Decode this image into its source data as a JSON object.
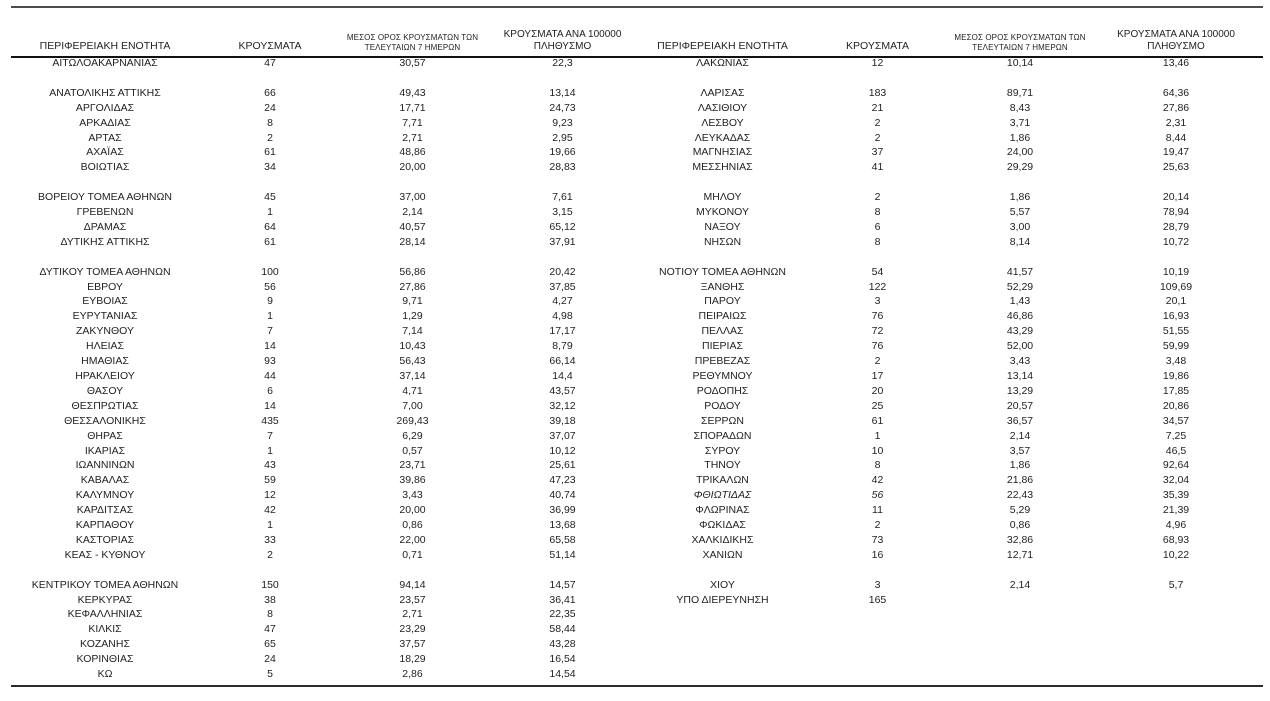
{
  "headers": {
    "region": "ΠΕΡΙΦΕΡΕΙΑΚΗ ΕΝΟΤΗΤΑ",
    "cases": "ΚΡΟΥΣΜΑΤΑ",
    "avg7_line1": "ΜΕΣΟΣ ΟΡΟΣ ΚΡΟΥΣΜΑΤΩΝ ΤΩΝ",
    "avg7_line2": "ΤΕΛΕΥΤΑΙΩΝ 7 ΗΜΕΡΩΝ",
    "per100k_line1": "ΚΡΟΥΣΜΑΤΑ ΑΝΑ 100000",
    "per100k_line2": "ΠΛΗΘΥΣΜΟ"
  },
  "colors": {
    "text": "#1f1f1f",
    "rule_top": "#4d4d4d",
    "rule_header": "#111111",
    "rule_bottom": "#2b2b2b",
    "background": "#ffffff"
  },
  "left_table": {
    "rows": [
      {
        "region": "ΑΙΤΩΛΟΑΚΑΡΝΑΝΙΑΣ",
        "cases": "47",
        "avg7": "30,57",
        "per100k": "22,3"
      },
      null,
      {
        "region": "ΑΝΑΤΟΛΙΚΗΣ ΑΤΤΙΚΗΣ",
        "cases": "66",
        "avg7": "49,43",
        "per100k": "13,14"
      },
      {
        "region": "ΑΡΓΟΛΙΔΑΣ",
        "cases": "24",
        "avg7": "17,71",
        "per100k": "24,73"
      },
      {
        "region": "ΑΡΚΑΔΙΑΣ",
        "cases": "8",
        "avg7": "7,71",
        "per100k": "9,23"
      },
      {
        "region": "ΑΡΤΑΣ",
        "cases": "2",
        "avg7": "2,71",
        "per100k": "2,95"
      },
      {
        "region": "ΑΧΑΪΑΣ",
        "cases": "61",
        "avg7": "48,86",
        "per100k": "19,66"
      },
      {
        "region": "ΒΟΙΩΤΙΑΣ",
        "cases": "34",
        "avg7": "20,00",
        "per100k": "28,83"
      },
      null,
      {
        "region": "ΒΟΡΕΙΟΥ ΤΟΜΕΑ ΑΘΗΝΩΝ",
        "cases": "45",
        "avg7": "37,00",
        "per100k": "7,61"
      },
      {
        "region": "ΓΡΕΒΕΝΩΝ",
        "cases": "1",
        "avg7": "2,14",
        "per100k": "3,15"
      },
      {
        "region": "ΔΡΑΜΑΣ",
        "cases": "64",
        "avg7": "40,57",
        "per100k": "65,12"
      },
      {
        "region": "ΔΥΤΙΚΗΣ ΑΤΤΙΚΗΣ",
        "cases": "61",
        "avg7": "28,14",
        "per100k": "37,91"
      },
      null,
      {
        "region": "ΔΥΤΙΚΟΥ ΤΟΜΕΑ ΑΘΗΝΩΝ",
        "cases": "100",
        "avg7": "56,86",
        "per100k": "20,42"
      },
      {
        "region": "ΕΒΡΟΥ",
        "cases": "56",
        "avg7": "27,86",
        "per100k": "37,85"
      },
      {
        "region": "ΕΥΒΟΙΑΣ",
        "cases": "9",
        "avg7": "9,71",
        "per100k": "4,27"
      },
      {
        "region": "ΕΥΡΥΤΑΝΙΑΣ",
        "cases": "1",
        "avg7": "1,29",
        "per100k": "4,98"
      },
      {
        "region": "ΖΑΚΥΝΘΟΥ",
        "cases": "7",
        "avg7": "7,14",
        "per100k": "17,17"
      },
      {
        "region": "ΗΛΕΙΑΣ",
        "cases": "14",
        "avg7": "10,43",
        "per100k": "8,79"
      },
      {
        "region": "ΗΜΑΘΙΑΣ",
        "cases": "93",
        "avg7": "56,43",
        "per100k": "66,14"
      },
      {
        "region": "ΗΡΑΚΛΕΙΟΥ",
        "cases": "44",
        "avg7": "37,14",
        "per100k": "14,4"
      },
      {
        "region": "ΘΑΣΟΥ",
        "cases": "6",
        "avg7": "4,71",
        "per100k": "43,57"
      },
      {
        "region": "ΘΕΣΠΡΩΤΙΑΣ",
        "cases": "14",
        "avg7": "7,00",
        "per100k": "32,12"
      },
      {
        "region": "ΘΕΣΣΑΛΟΝΙΚΗΣ",
        "cases": "435",
        "avg7": "269,43",
        "per100k": "39,18"
      },
      {
        "region": "ΘΗΡΑΣ",
        "cases": "7",
        "avg7": "6,29",
        "per100k": "37,07"
      },
      {
        "region": "ΙΚΑΡΙΑΣ",
        "cases": "1",
        "avg7": "0,57",
        "per100k": "10,12"
      },
      {
        "region": "ΙΩΑΝΝΙΝΩΝ",
        "cases": "43",
        "avg7": "23,71",
        "per100k": "25,61"
      },
      {
        "region": "ΚΑΒΑΛΑΣ",
        "cases": "59",
        "avg7": "39,86",
        "per100k": "47,23"
      },
      {
        "region": "ΚΑΛΥΜΝΟΥ",
        "cases": "12",
        "avg7": "3,43",
        "per100k": "40,74"
      },
      {
        "region": "ΚΑΡΔΙΤΣΑΣ",
        "cases": "42",
        "avg7": "20,00",
        "per100k": "36,99"
      },
      {
        "region": "ΚΑΡΠΑΘΟΥ",
        "cases": "1",
        "avg7": "0,86",
        "per100k": "13,68"
      },
      {
        "region": "ΚΑΣΤΟΡΙΑΣ",
        "cases": "33",
        "avg7": "22,00",
        "per100k": "65,58"
      },
      {
        "region": "ΚΕΑΣ - ΚΥΘΝΟΥ",
        "cases": "2",
        "avg7": "0,71",
        "per100k": "51,14"
      },
      null,
      {
        "region": "ΚΕΝΤΡΙΚΟΥ ΤΟΜΕΑ ΑΘΗΝΩΝ",
        "cases": "150",
        "avg7": "94,14",
        "per100k": "14,57"
      },
      {
        "region": "ΚΕΡΚΥΡΑΣ",
        "cases": "38",
        "avg7": "23,57",
        "per100k": "36,41"
      },
      {
        "region": "ΚΕΦΑΛΛΗΝΙΑΣ",
        "cases": "8",
        "avg7": "2,71",
        "per100k": "22,35"
      },
      {
        "region": "ΚΙΛΚΙΣ",
        "cases": "47",
        "avg7": "23,29",
        "per100k": "58,44"
      },
      {
        "region": "ΚΟΖΑΝΗΣ",
        "cases": "65",
        "avg7": "37,57",
        "per100k": "43,28"
      },
      {
        "region": "ΚΟΡΙΝΘΙΑΣ",
        "cases": "24",
        "avg7": "18,29",
        "per100k": "16,54"
      },
      {
        "region": "ΚΩ",
        "cases": "5",
        "avg7": "2,86",
        "per100k": "14,54"
      }
    ]
  },
  "right_table": {
    "rows": [
      {
        "region": "ΛΑΚΩΝΙΑΣ",
        "cases": "12",
        "avg7": "10,14",
        "per100k": "13,46"
      },
      null,
      {
        "region": "ΛΑΡΙΣΑΣ",
        "cases": "183",
        "avg7": "89,71",
        "per100k": "64,36"
      },
      {
        "region": "ΛΑΣΙΘΙΟΥ",
        "cases": "21",
        "avg7": "8,43",
        "per100k": "27,86"
      },
      {
        "region": "ΛΕΣΒΟΥ",
        "cases": "2",
        "avg7": "3,71",
        "per100k": "2,31"
      },
      {
        "region": "ΛΕΥΚΑΔΑΣ",
        "cases": "2",
        "avg7": "1,86",
        "per100k": "8,44"
      },
      {
        "region": "ΜΑΓΝΗΣΙΑΣ",
        "cases": "37",
        "avg7": "24,00",
        "per100k": "19,47"
      },
      {
        "region": "ΜΕΣΣΗΝΙΑΣ",
        "cases": "41",
        "avg7": "29,29",
        "per100k": "25,63"
      },
      null,
      {
        "region": "ΜΗΛΟΥ",
        "cases": "2",
        "avg7": "1,86",
        "per100k": "20,14"
      },
      {
        "region": "ΜΥΚΟΝΟΥ",
        "cases": "8",
        "avg7": "5,57",
        "per100k": "78,94"
      },
      {
        "region": "ΝΑΞΟΥ",
        "cases": "6",
        "avg7": "3,00",
        "per100k": "28,79"
      },
      {
        "region": "ΝΗΣΩΝ",
        "cases": "8",
        "avg7": "8,14",
        "per100k": "10,72"
      },
      null,
      {
        "region": "ΝΟΤΙΟΥ ΤΟΜΕΑ ΑΘΗΝΩΝ",
        "cases": "54",
        "avg7": "41,57",
        "per100k": "10,19"
      },
      {
        "region": "ΞΑΝΘΗΣ",
        "cases": "122",
        "avg7": "52,29",
        "per100k": "109,69"
      },
      {
        "region": "ΠΑΡΟΥ",
        "cases": "3",
        "avg7": "1,43",
        "per100k": "20,1"
      },
      {
        "region": "ΠΕΙΡΑΙΩΣ",
        "cases": "76",
        "avg7": "46,86",
        "per100k": "16,93"
      },
      {
        "region": "ΠΕΛΛΑΣ",
        "cases": "72",
        "avg7": "43,29",
        "per100k": "51,55"
      },
      {
        "region": "ΠΙΕΡΙΑΣ",
        "cases": "76",
        "avg7": "52,00",
        "per100k": "59,99"
      },
      {
        "region": "ΠΡΕΒΕΖΑΣ",
        "cases": "2",
        "avg7": "3,43",
        "per100k": "3,48"
      },
      {
        "region": "ΡΕΘΥΜΝΟΥ",
        "cases": "17",
        "avg7": "13,14",
        "per100k": "19,86"
      },
      {
        "region": "ΡΟΔΟΠΗΣ",
        "cases": "20",
        "avg7": "13,29",
        "per100k": "17,85"
      },
      {
        "region": "ΡΟΔΟΥ",
        "cases": "25",
        "avg7": "20,57",
        "per100k": "20,86"
      },
      {
        "region": "ΣΕΡΡΩΝ",
        "cases": "61",
        "avg7": "36,57",
        "per100k": "34,57"
      },
      {
        "region": "ΣΠΟΡΑΔΩΝ",
        "cases": "1",
        "avg7": "2,14",
        "per100k": "7,25"
      },
      {
        "region": "ΣΥΡΟΥ",
        "cases": "10",
        "avg7": "3,57",
        "per100k": "46,5"
      },
      {
        "region": "ΤΗΝΟΥ",
        "cases": "8",
        "avg7": "1,86",
        "per100k": "92,64"
      },
      {
        "region": "ΤΡΙΚΑΛΩΝ",
        "cases": "42",
        "avg7": "21,86",
        "per100k": "32,04"
      },
      {
        "region": "ΦΘΙΩΤΙΔΑΣ",
        "cases": "56",
        "avg7": "22,43",
        "per100k": "35,39",
        "italic": true
      },
      {
        "region": "ΦΛΩΡΙΝΑΣ",
        "cases": "11",
        "avg7": "5,29",
        "per100k": "21,39"
      },
      {
        "region": "ΦΩΚΙΔΑΣ",
        "cases": "2",
        "avg7": "0,86",
        "per100k": "4,96"
      },
      {
        "region": "ΧΑΛΚΙΔΙΚΗΣ",
        "cases": "73",
        "avg7": "32,86",
        "per100k": "68,93"
      },
      {
        "region": "ΧΑΝΙΩΝ",
        "cases": "16",
        "avg7": "12,71",
        "per100k": "10,22"
      },
      null,
      {
        "region": "ΧΙΟΥ",
        "cases": "3",
        "avg7": "2,14",
        "per100k": "5,7"
      },
      {
        "region": "ΥΠΟ ΔΙΕΡΕΥΝΗΣΗ",
        "cases": "165",
        "avg7": "",
        "per100k": ""
      }
    ]
  }
}
